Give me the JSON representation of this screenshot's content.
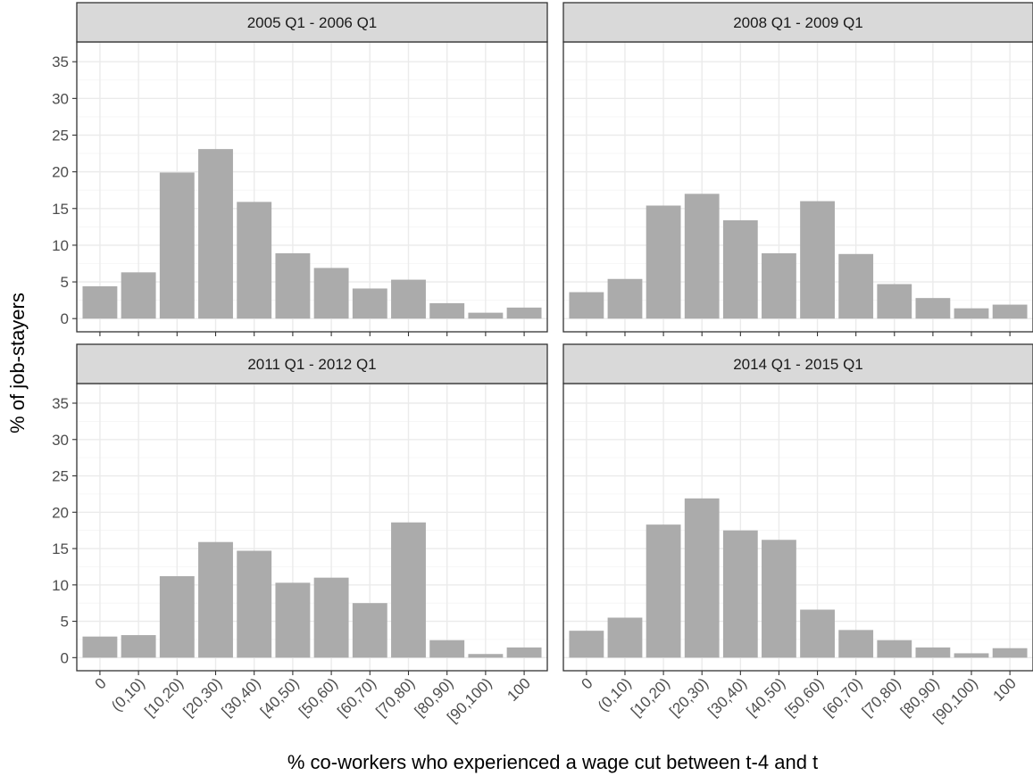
{
  "chart_data": [
    {
      "type": "bar",
      "title": "2005 Q1 - 2006 Q1",
      "categories": [
        "0",
        "(0,10)",
        "[10,20)",
        "[20,30)",
        "[30,40)",
        "[40,50)",
        "[50,60)",
        "[60,70)",
        "[70,80)",
        "[80,90)",
        "[90,100)",
        "100"
      ],
      "values": [
        4.4,
        6.3,
        19.9,
        23.1,
        15.9,
        8.9,
        6.9,
        4.1,
        5.3,
        2.1,
        0.8,
        1.5
      ],
      "ylim": [
        -1.8,
        37.7
      ],
      "yticks": [
        0,
        5,
        10,
        15,
        20,
        25,
        30,
        35
      ]
    },
    {
      "type": "bar",
      "title": "2008 Q1 - 2009 Q1",
      "categories": [
        "0",
        "(0,10)",
        "[10,20)",
        "[20,30)",
        "[30,40)",
        "[40,50)",
        "[50,60)",
        "[60,70)",
        "[70,80)",
        "[80,90)",
        "[90,100)",
        "100"
      ],
      "values": [
        3.6,
        5.4,
        15.4,
        17.0,
        13.4,
        8.9,
        16.0,
        8.8,
        4.7,
        2.8,
        1.4,
        1.9
      ],
      "ylim": [
        -1.8,
        37.7
      ],
      "yticks": [
        0,
        5,
        10,
        15,
        20,
        25,
        30,
        35
      ]
    },
    {
      "type": "bar",
      "title": "2011 Q1 - 2012 Q1",
      "categories": [
        "0",
        "(0,10)",
        "[10,20)",
        "[20,30)",
        "[30,40)",
        "[40,50)",
        "[50,60)",
        "[60,70)",
        "[70,80)",
        "[80,90)",
        "[90,100)",
        "100"
      ],
      "values": [
        2.9,
        3.1,
        11.2,
        15.9,
        14.7,
        10.3,
        11.0,
        7.5,
        18.6,
        2.4,
        0.5,
        1.4
      ],
      "ylim": [
        -1.8,
        37.7
      ],
      "yticks": [
        0,
        5,
        10,
        15,
        20,
        25,
        30,
        35
      ]
    },
    {
      "type": "bar",
      "title": "2014 Q1 - 2015 Q1",
      "categories": [
        "0",
        "(0,10)",
        "[10,20)",
        "[20,30)",
        "[30,40)",
        "[40,50)",
        "[50,60)",
        "[60,70)",
        "[70,80)",
        "[80,90)",
        "[90,100)",
        "100"
      ],
      "values": [
        3.7,
        5.5,
        18.3,
        21.9,
        17.5,
        16.2,
        6.6,
        3.8,
        2.4,
        1.4,
        0.6,
        1.3
      ],
      "ylim": [
        -1.8,
        37.7
      ],
      "yticks": [
        0,
        5,
        10,
        15,
        20,
        25,
        30,
        35
      ]
    }
  ],
  "xlabel": "% co-workers who experienced a wage cut between t-4 and t",
  "ylabel": "% of job-stayers",
  "bar_color": "#ababab",
  "strip_color": "#d9d9d9"
}
